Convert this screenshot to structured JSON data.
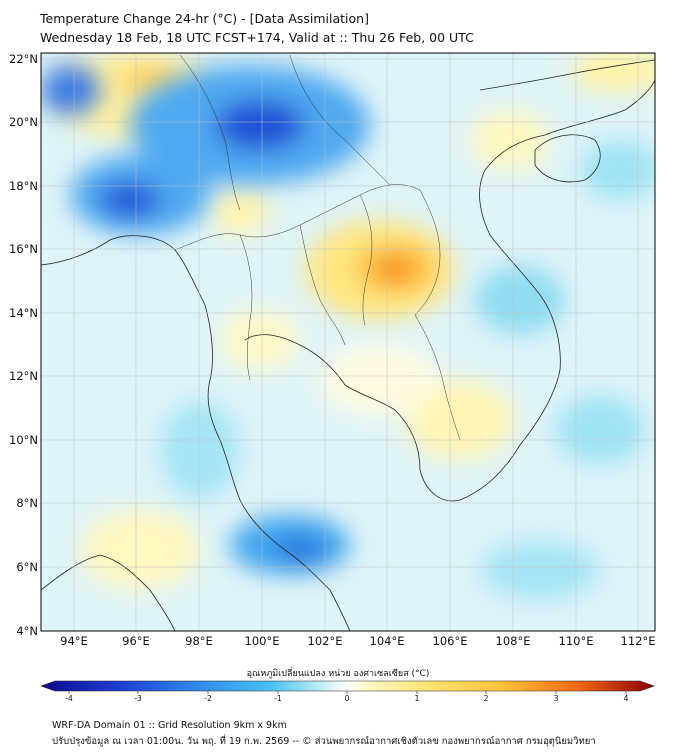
{
  "header": {
    "title_line1": "Temperature Change 24-hr (°C) - [Data Assimilation]",
    "title_line2": "Wednesday 18 Feb, 18 UTC FCST+174, Valid at :: Thu 26 Feb, 00 UTC"
  },
  "map": {
    "lat_ticks": [
      "22°N",
      "20°N",
      "18°N",
      "16°N",
      "14°N",
      "12°N",
      "10°N",
      "8°N",
      "6°N",
      "4°N"
    ],
    "lon_ticks": [
      "94°E",
      "96°E",
      "98°E",
      "100°E",
      "102°E",
      "104°E",
      "106°E",
      "108°E",
      "110°E",
      "112°E"
    ]
  },
  "colorbar": {
    "label": "อุณหภูมิเปลี่ยนแปลง หน่วย องศาเซลเซียส (°C)",
    "ticks": [
      "-4",
      "-3",
      "-2",
      "-1",
      "0",
      "1",
      "2",
      "3",
      "4"
    ],
    "colors": [
      "#0a0a8c",
      "#1e3cd2",
      "#2f86ec",
      "#48c2f2",
      "#aeebf5",
      "#ffffff",
      "#fff5a8",
      "#ffd54a",
      "#ff9a1e",
      "#e8350a",
      "#8b0000"
    ]
  },
  "footer": {
    "line1": "WRF-DA Domain 01 :: Grid Resolution 9km x 9km",
    "line2": "ปรับปรุงข้อมูล ณ เวลา 01:00น. วัน พฤ. ที่ 19 ก.พ. 2569 -- © ส่วนพยากรณ์อากาศเชิงตัวเลข กองพยากรณ์อากาศ กรมอุตุนิยมวิทยา"
  }
}
